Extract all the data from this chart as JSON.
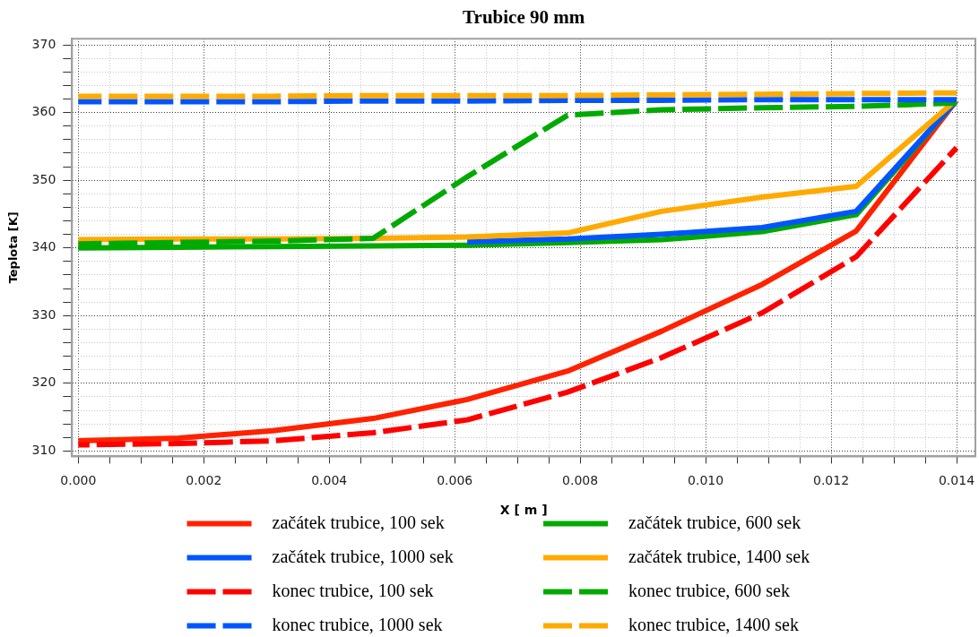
{
  "chart_data": {
    "type": "line",
    "title": "Trubice 90 mm",
    "xlabel": "X [ m ]",
    "ylabel": "Teplota [K]",
    "x": [
      0,
      0.0016,
      0.0031,
      0.0047,
      0.0062,
      0.0078,
      0.0093,
      0.0109,
      0.0124,
      0.014
    ],
    "series": [
      {
        "name": "začátek trubice, 100 sek",
        "color": "#ff2200",
        "line_style": "solid",
        "values": [
          311.5,
          311.9,
          313.0,
          314.8,
          317.6,
          321.8,
          327.7,
          334.6,
          342.5,
          361.8
        ]
      },
      {
        "name": "začátek trubice, 600 sek",
        "color": "#00aa00",
        "line_style": "solid",
        "values": [
          340.0,
          340.1,
          340.2,
          340.3,
          340.4,
          340.8,
          341.2,
          342.4,
          344.9,
          361.8
        ]
      },
      {
        "name": "začátek trubice, 1000 sek",
        "color": "#0055ff",
        "line_style": "solid",
        "values": [
          null,
          null,
          null,
          null,
          340.9,
          341.3,
          342.0,
          343.0,
          345.4,
          361.8
        ]
      },
      {
        "name": "začátek trubice, 1400 sek",
        "color": "#ffaa00",
        "line_style": "solid",
        "values": [
          341.2,
          341.3,
          341.3,
          341.4,
          341.6,
          342.2,
          345.4,
          347.5,
          349.1,
          361.9
        ]
      },
      {
        "name": "konec trubice, 100 sek",
        "color": "#ff0000",
        "line_style": "dashed",
        "values": [
          310.9,
          311.1,
          311.5,
          312.7,
          314.6,
          318.7,
          323.8,
          330.4,
          338.7,
          354.8
        ]
      },
      {
        "name": "konec trubice, 600 sek",
        "color": "#00aa00",
        "line_style": "dashed",
        "values": [
          340.6,
          340.8,
          341.0,
          341.4,
          350.5,
          359.6,
          360.4,
          360.7,
          360.9,
          361.4
        ]
      },
      {
        "name": "konec trubice, 1000 sek",
        "color": "#0055ff",
        "line_style": "dashed",
        "values": [
          361.6,
          361.6,
          361.6,
          361.7,
          361.7,
          361.8,
          361.8,
          361.9,
          361.9,
          361.9
        ]
      },
      {
        "name": "konec trubice, 1400 sek",
        "color": "#ffaa00",
        "line_style": "dashed",
        "values": [
          362.4,
          362.4,
          362.4,
          362.5,
          362.5,
          362.5,
          362.6,
          362.7,
          362.8,
          362.9
        ]
      }
    ],
    "xlim": [
      -0.0001,
      0.0143
    ],
    "xticks": [
      {
        "value": 0,
        "label": "0.000"
      },
      {
        "value": 0.0005,
        "label": null
      },
      {
        "value": 0.001,
        "label": null
      },
      {
        "value": 0.0015,
        "label": null
      },
      {
        "value": 0.002,
        "label": "0.002"
      },
      {
        "value": 0.0025,
        "label": null
      },
      {
        "value": 0.003,
        "label": null
      },
      {
        "value": 0.0035,
        "label": null
      },
      {
        "value": 0.004,
        "label": "0.004"
      },
      {
        "value": 0.0045,
        "label": null
      },
      {
        "value": 0.005,
        "label": null
      },
      {
        "value": 0.0055,
        "label": null
      },
      {
        "value": 0.006,
        "label": "0.006"
      },
      {
        "value": 0.0065,
        "label": null
      },
      {
        "value": 0.007,
        "label": null
      },
      {
        "value": 0.0075,
        "label": null
      },
      {
        "value": 0.008,
        "label": "0.008"
      },
      {
        "value": 0.0085,
        "label": null
      },
      {
        "value": 0.009,
        "label": null
      },
      {
        "value": 0.0095,
        "label": null
      },
      {
        "value": 0.01,
        "label": "0.010"
      },
      {
        "value": 0.0105,
        "label": null
      },
      {
        "value": 0.011,
        "label": null
      },
      {
        "value": 0.0115,
        "label": null
      },
      {
        "value": 0.012,
        "label": "0.012"
      },
      {
        "value": 0.0125,
        "label": null
      },
      {
        "value": 0.013,
        "label": null
      },
      {
        "value": 0.0135,
        "label": null
      },
      {
        "value": 0.014,
        "label": "0.014"
      }
    ],
    "ylim": [
      309.2,
      370.9
    ],
    "yticks": [
      310,
      {
        "value": 312,
        "label": null
      },
      {
        "value": 314,
        "label": null
      },
      {
        "value": 316,
        "label": null
      },
      {
        "value": 318,
        "label": null
      },
      320,
      {
        "value": 322,
        "label": null
      },
      {
        "value": 324,
        "label": null
      },
      {
        "value": 326,
        "label": null
      },
      {
        "value": 328,
        "label": null
      },
      330,
      {
        "value": 332,
        "label": null
      },
      {
        "value": 334,
        "label": null
      },
      {
        "value": 336,
        "label": null
      },
      {
        "value": 338,
        "label": null
      },
      340,
      {
        "value": 342,
        "label": null
      },
      {
        "value": 344,
        "label": null
      },
      {
        "value": 346,
        "label": null
      },
      {
        "value": 348,
        "label": null
      },
      350,
      {
        "value": 352,
        "label": null
      },
      {
        "value": 354,
        "label": null
      },
      {
        "value": 356,
        "label": null
      },
      {
        "value": 358,
        "label": null
      },
      360,
      {
        "value": 362,
        "label": null
      },
      {
        "value": 364,
        "label": null
      },
      {
        "value": 366,
        "label": null
      },
      {
        "value": 368,
        "label": null
      },
      370
    ],
    "grid": true,
    "legend": "bottom"
  }
}
